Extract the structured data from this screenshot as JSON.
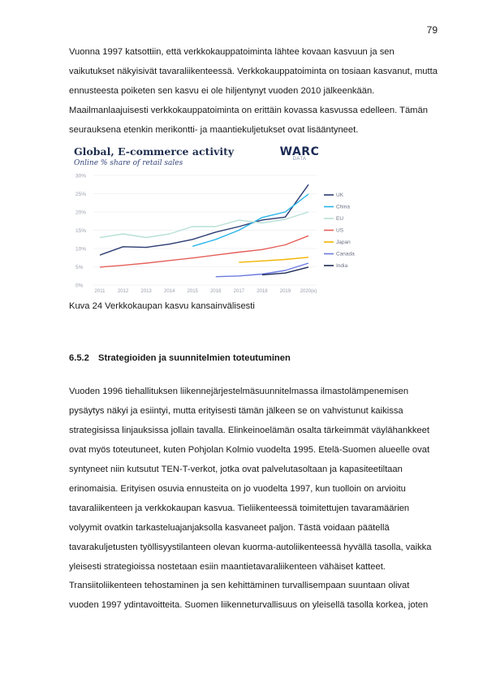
{
  "page_number": "79",
  "intro_lines": [
    "Vuonna 1997 katsottiin, että verkkokauppatoiminta lähtee kovaan kasvuun ja sen",
    "vaikutukset näkyisivät tavaraliikenteessä. Verkkokauppatoiminta on tosiaan kasvanut, mutta",
    "ennusteesta poiketen sen kasvu ei ole hiljentynyt vuoden 2010 jälkeenkään.",
    "Maailmanlaajuisesti verkkokauppatoiminta on erittäin kovassa kasvussa edelleen. Tämän",
    "seurauksena etenkin merikontti- ja maantiekuljetukset ovat lisääntyneet."
  ],
  "figure": {
    "brand": "WARC",
    "brand_sub": "DATA",
    "caption": "Kuva 24 Verkkokaupan kasvu kansainvälisesti"
  },
  "chart_data": {
    "type": "line",
    "title": "Global, E-commerce activity",
    "subtitle": "Online % share of retail sales",
    "x": [
      "2011",
      "2012",
      "2013",
      "2014",
      "2015",
      "2016",
      "2017",
      "2018",
      "2019",
      "2020(e)"
    ],
    "ylim": [
      0,
      30
    ],
    "yticks": [
      "0%",
      "5%",
      "10%",
      "15%",
      "20%",
      "25%",
      "30%"
    ],
    "grid": true,
    "legend_position": "right",
    "series": [
      {
        "name": "UK",
        "color": "#2b3a72",
        "values": [
          8.2,
          10.5,
          10.3,
          11.2,
          12.5,
          14.5,
          16.0,
          17.8,
          18.6,
          27.5
        ]
      },
      {
        "name": "China",
        "color": "#29b5e8",
        "values": [
          null,
          null,
          null,
          null,
          10.6,
          12.5,
          15.0,
          18.5,
          20.0,
          24.9
        ]
      },
      {
        "name": "EU",
        "color": "#b7e0d6",
        "values": [
          13.0,
          14.0,
          13.0,
          14.0,
          16.0,
          16.0,
          17.8,
          17.0,
          18.0,
          20.0
        ]
      },
      {
        "name": "US",
        "color": "#e5605a",
        "values": [
          4.9,
          5.4,
          6.0,
          6.7,
          7.4,
          8.2,
          9.0,
          9.7,
          11.0,
          13.5
        ]
      },
      {
        "name": "Japan",
        "color": "#f2b400",
        "values": [
          null,
          null,
          null,
          null,
          null,
          null,
          6.2,
          6.6,
          7.0,
          7.6
        ]
      },
      {
        "name": "Canada",
        "color": "#6c7ae0",
        "values": [
          null,
          null,
          null,
          null,
          null,
          2.3,
          2.5,
          3.0,
          4.0,
          6.0
        ]
      },
      {
        "name": "India",
        "color": "#1c2b55",
        "values": [
          null,
          null,
          null,
          null,
          null,
          null,
          null,
          2.8,
          3.3,
          4.9
        ]
      }
    ]
  },
  "section": {
    "number": "6.5.2",
    "title": "Strategioiden ja suunnitelmien toteutuminen"
  },
  "body_lines": [
    "Vuoden 1996 tiehallituksen liikennejärjestelmäsuunnitelmassa ilmastolämpenemisen",
    "pysäytys näkyi ja esiintyi, mutta erityisesti tämän jälkeen se on vahvistunut kaikissa",
    "strategisissa linjauksissa jollain tavalla. Elinkeinoelämän osalta tärkeimmät väylähankkeet",
    "ovat myös toteutuneet, kuten Pohjolan Kolmio vuodelta 1995. Etelä-Suomen alueelle ovat",
    "syntyneet niin kutsutut TEN-T-verkot, jotka ovat palvelutasoltaan ja kapasiteetiltaan",
    "erinomaisia. Erityisen osuvia ennusteita on jo vuodelta 1997, kun tuolloin on arvioitu",
    "tavaraliikenteen ja verkkokaupan kasvua. Tieliikenteessä toimitettujen tavaramäärien",
    "volyymit ovatkin tarkasteluajanjaksolla kasvaneet paljon. Tästä voidaan päätellä",
    "tavarakuljetusten työllisyystilanteen olevan kuorma-autoliikenteessä hyvällä tasolla, vaikka",
    "yleisesti strategioissa nostetaan esiin maantietavaraliikenteen vähäiset katteet."
  ],
  "closing_lines": [
    "Transiitoliikenteen tehostaminen ja sen kehittäminen turvallisempaan suuntaan olivat",
    "vuoden 1997 ydintavoitteita. Suomen liikenneturvallisuus on yleisellä tasolla korkea, joten"
  ]
}
